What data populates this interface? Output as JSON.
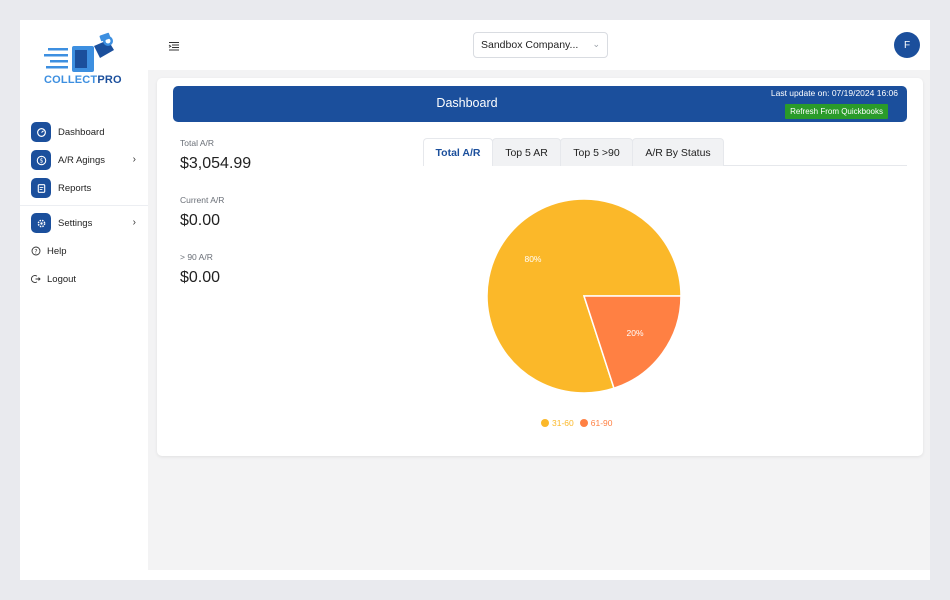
{
  "brand": {
    "name_part1": "COLLECT",
    "name_part2": "PRO"
  },
  "sidebar": {
    "items": [
      {
        "label": "Dashboard",
        "icon": "dashboard-icon"
      },
      {
        "label": "A/R Agings",
        "icon": "dollar-icon",
        "has_submenu": true
      },
      {
        "label": "Reports",
        "icon": "report-icon"
      },
      {
        "label": "Settings",
        "icon": "gear-icon",
        "has_submenu": true
      }
    ],
    "help_label": "Help",
    "logout_label": "Logout"
  },
  "topbar": {
    "company_selected": "Sandbox Company...",
    "avatar_initial": "F"
  },
  "dashboard": {
    "title": "Dashboard",
    "last_update": "Last update on: 07/19/2024 16:06",
    "refresh_label": "Refresh From Quickbooks",
    "stats": [
      {
        "label": "Total A/R",
        "value": "$3,054.99"
      },
      {
        "label": "Current A/R",
        "value": "$0.00"
      },
      {
        "label": "> 90 A/R",
        "value": "$0.00"
      }
    ],
    "tabs": [
      {
        "label": "Total A/R",
        "active": true
      },
      {
        "label": "Top 5 AR",
        "active": false
      },
      {
        "label": "Top 5 >90",
        "active": false
      },
      {
        "label": "A/R By Status",
        "active": false
      }
    ]
  },
  "colors": {
    "primary": "#1b4f9c",
    "refresh_green": "#2a9b2a",
    "slice_31_60": "#fbb829",
    "slice_61_90": "#ff8043"
  },
  "chart_data": {
    "type": "pie",
    "categories": [
      "31-60",
      "61-90"
    ],
    "values": [
      80,
      20
    ],
    "data_labels": [
      "80%",
      "20%"
    ],
    "colors": [
      "#fbb829",
      "#ff8043"
    ],
    "legend": "bottom"
  }
}
